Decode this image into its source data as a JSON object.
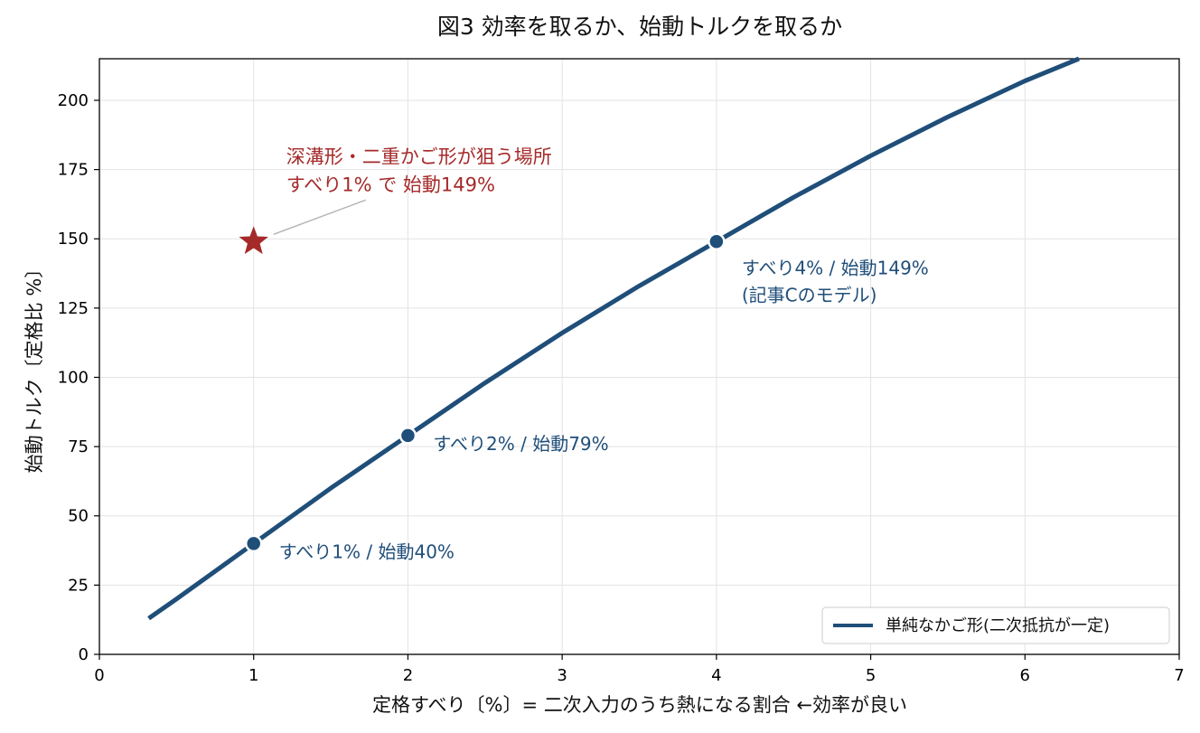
{
  "chart_data": {
    "type": "line",
    "title": "図3 効率を取るか、始動トルクを取るか",
    "xlabel": "定格すべり〔%〕= 二次入力のうち熱になる割合 ←効率が良い",
    "ylabel": "始動トルク〔定格比 %〕",
    "xlim": [
      0,
      7
    ],
    "ylim": [
      0,
      215
    ],
    "x_ticks": [
      "0",
      "1",
      "2",
      "3",
      "4",
      "5",
      "6",
      "7"
    ],
    "y_ticks": [
      "0",
      "25",
      "50",
      "75",
      "100",
      "125",
      "150",
      "175",
      "200"
    ],
    "grid": true,
    "legend": {
      "position": "bottom-right"
    },
    "series": [
      {
        "name": "単純なかご形(二次抵抗が一定)",
        "color": "#1f4e79",
        "x": [
          0.32,
          0.5,
          1.0,
          1.5,
          2.0,
          2.5,
          3.0,
          3.5,
          4.0,
          4.5,
          5.0,
          5.5,
          6.0,
          6.35
        ],
        "y": [
          13,
          20,
          40,
          60,
          79,
          98,
          116,
          133,
          149,
          165,
          180,
          194,
          207,
          215
        ]
      }
    ],
    "markers": [
      {
        "x": 1,
        "y": 40,
        "label": "すべり1% / 始動40%"
      },
      {
        "x": 2,
        "y": 79,
        "label": "すべり2% / 始動79%"
      },
      {
        "x": 4,
        "y": 149,
        "label": [
          "すべり4% / 始動149%",
          "(記事Cのモデル)"
        ]
      }
    ],
    "annotation": {
      "x": 1,
      "y": 149,
      "color": "#a52a2a",
      "marker": "star",
      "label": [
        "深溝形・二重かご形が狙う場所",
        "すべり1% で 始動149%"
      ]
    }
  }
}
